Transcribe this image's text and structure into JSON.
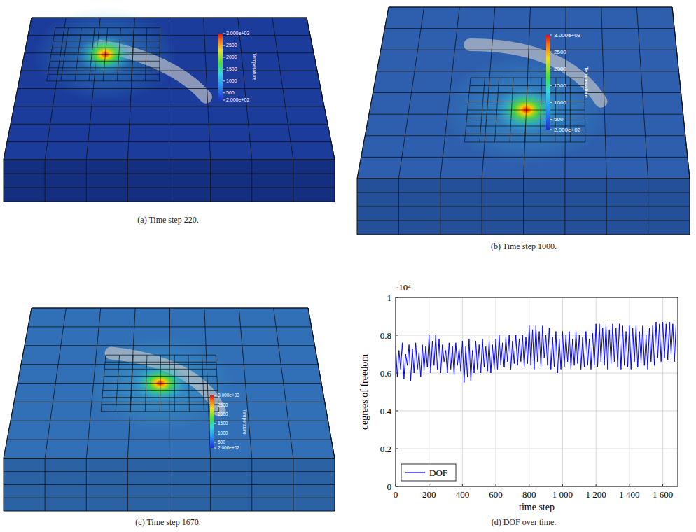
{
  "panels": [
    {
      "caption": "(a) Time step 220.",
      "colorbar": {
        "title": "Temperature",
        "range": [
          200,
          3000
        ],
        "ticks": [
          {
            "value": 3000,
            "label": "3.000e+03"
          },
          2500,
          2000,
          1500,
          1000,
          500,
          {
            "value": 200,
            "label": "2.000e+02"
          }
        ]
      }
    },
    {
      "caption": "(b) Time step 1000.",
      "colorbar": {
        "title": "Temperature",
        "range": [
          200,
          3000
        ],
        "ticks": [
          {
            "value": 3000,
            "label": "3.000e+03"
          },
          2500,
          2000,
          1500,
          1000,
          500,
          {
            "value": 200,
            "label": "2.000e+02"
          }
        ]
      }
    },
    {
      "caption": "(c) Time step 1670.",
      "colorbar": {
        "title": "Temperature",
        "range": [
          200,
          3000
        ],
        "ticks": [
          {
            "value": 3000,
            "label": "3.000e+03"
          },
          2500,
          2000,
          1500,
          1000,
          500,
          {
            "value": 200,
            "label": "2.000e+02"
          }
        ]
      }
    },
    {
      "caption": "(d) DOF over time."
    }
  ],
  "chart_data": {
    "type": "line",
    "xlabel": "time step",
    "ylabel": "degrees of freedom",
    "y_scale_label": "·10⁴",
    "x": [
      0,
      10,
      20,
      30,
      40,
      50,
      60,
      70,
      80,
      90,
      100,
      110,
      120,
      130,
      140,
      150,
      160,
      170,
      180,
      190,
      200,
      210,
      220,
      230,
      240,
      250,
      260,
      270,
      280,
      290,
      300,
      310,
      320,
      330,
      340,
      350,
      360,
      370,
      380,
      390,
      400,
      410,
      420,
      430,
      440,
      450,
      460,
      470,
      480,
      490,
      500,
      510,
      520,
      530,
      540,
      550,
      560,
      570,
      580,
      590,
      600,
      610,
      620,
      630,
      640,
      650,
      660,
      670,
      680,
      690,
      700,
      710,
      720,
      730,
      740,
      750,
      760,
      770,
      780,
      790,
      800,
      810,
      820,
      830,
      840,
      850,
      860,
      870,
      880,
      890,
      900,
      910,
      920,
      930,
      940,
      950,
      960,
      970,
      980,
      990,
      1000,
      1010,
      1020,
      1030,
      1040,
      1050,
      1060,
      1070,
      1080,
      1090,
      1100,
      1110,
      1120,
      1130,
      1140,
      1150,
      1160,
      1170,
      1180,
      1190,
      1200,
      1210,
      1220,
      1230,
      1240,
      1250,
      1260,
      1270,
      1280,
      1290,
      1300,
      1310,
      1320,
      1330,
      1340,
      1350,
      1360,
      1370,
      1380,
      1390,
      1400,
      1410,
      1420,
      1430,
      1440,
      1450,
      1460,
      1470,
      1480,
      1490,
      1500,
      1510,
      1520,
      1530,
      1540,
      1550,
      1560,
      1570,
      1580,
      1590,
      1600,
      1610,
      1620,
      1630,
      1640,
      1650,
      1660,
      1670,
      1680
    ],
    "series": [
      {
        "name": "DOF",
        "color": "#0000ff",
        "line_style": "solid",
        "values": [
          0.74,
          0.58,
          0.72,
          0.62,
          0.76,
          0.57,
          0.7,
          0.64,
          0.75,
          0.56,
          0.73,
          0.6,
          0.76,
          0.62,
          0.71,
          0.58,
          0.75,
          0.61,
          0.74,
          0.63,
          0.8,
          0.6,
          0.77,
          0.64,
          0.8,
          0.62,
          0.78,
          0.6,
          0.75,
          0.66,
          0.72,
          0.6,
          0.76,
          0.62,
          0.74,
          0.59,
          0.76,
          0.64,
          0.73,
          0.61,
          0.77,
          0.55,
          0.74,
          0.58,
          0.78,
          0.56,
          0.72,
          0.6,
          0.77,
          0.62,
          0.75,
          0.6,
          0.78,
          0.63,
          0.74,
          0.61,
          0.77,
          0.6,
          0.75,
          0.62,
          0.78,
          0.62,
          0.8,
          0.64,
          0.76,
          0.63,
          0.79,
          0.66,
          0.8,
          0.62,
          0.77,
          0.65,
          0.8,
          0.64,
          0.78,
          0.66,
          0.8,
          0.63,
          0.79,
          0.65,
          0.85,
          0.64,
          0.83,
          0.62,
          0.85,
          0.66,
          0.82,
          0.63,
          0.85,
          0.68,
          0.8,
          0.64,
          0.84,
          0.62,
          0.79,
          0.63,
          0.82,
          0.6,
          0.78,
          0.62,
          0.82,
          0.63,
          0.8,
          0.66,
          0.82,
          0.62,
          0.78,
          0.64,
          0.82,
          0.65,
          0.8,
          0.62,
          0.79,
          0.63,
          0.82,
          0.64,
          0.78,
          0.62,
          0.81,
          0.64,
          0.86,
          0.63,
          0.86,
          0.66,
          0.84,
          0.64,
          0.86,
          0.62,
          0.83,
          0.65,
          0.86,
          0.66,
          0.84,
          0.63,
          0.86,
          0.62,
          0.85,
          0.64,
          0.82,
          0.63,
          0.85,
          0.62,
          0.84,
          0.66,
          0.85,
          0.63,
          0.82,
          0.65,
          0.85,
          0.64,
          0.8,
          0.62,
          0.84,
          0.66,
          0.85,
          0.64,
          0.87,
          0.68,
          0.86,
          0.66,
          0.87,
          0.68,
          0.86,
          0.67,
          0.87,
          0.7,
          0.86,
          0.66,
          0.87
        ]
      }
    ],
    "xlim": [
      0,
      1690
    ],
    "ylim": [
      0,
      1
    ],
    "xticks": [
      0,
      200,
      400,
      600,
      800,
      {
        "value": 1000,
        "label": "1 000"
      },
      {
        "value": 1200,
        "label": "1 200"
      },
      {
        "value": 1400,
        "label": "1 400"
      },
      {
        "value": 1600,
        "label": "1 600"
      }
    ],
    "yticks": [
      0,
      0.2,
      0.4,
      0.6,
      0.8,
      1
    ],
    "grid": true,
    "legend": "lower left"
  }
}
